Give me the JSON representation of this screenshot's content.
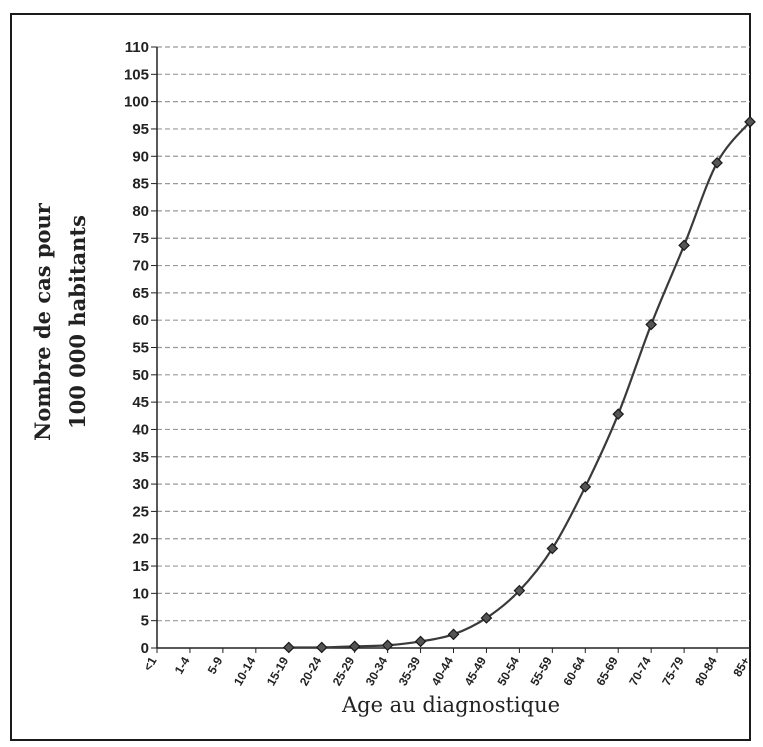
{
  "chart_data": {
    "type": "line",
    "title": "",
    "ylabel_lines": [
      "Nombre de cas pour",
      "100 000 habitants"
    ],
    "xlabel": "Age au diagnostique",
    "categories": [
      "<1",
      "1-4",
      "5-9",
      "10-14",
      "15-19",
      "20-24",
      "25-29",
      "30-34",
      "35-39",
      "40-44",
      "45-49",
      "50-54",
      "55-59",
      "60-64",
      "65-69",
      "70-74",
      "75-79",
      "80-84",
      "85+"
    ],
    "values": [
      null,
      null,
      null,
      null,
      0.1,
      0.1,
      0.3,
      0.5,
      1.2,
      2.5,
      5.5,
      10.5,
      18.2,
      29.5,
      42.8,
      59.2,
      73.7,
      88.8,
      96.3
    ],
    "ylim": [
      0,
      110
    ],
    "yticks": [
      0,
      5,
      10,
      15,
      20,
      25,
      30,
      35,
      40,
      45,
      50,
      55,
      60,
      65,
      70,
      75,
      80,
      85,
      90,
      95,
      100,
      105,
      110
    ],
    "grid": "horizontal-dashed",
    "marker": "diamond",
    "colors": {
      "line": "#3a3a3a",
      "marker": "#555555",
      "grid": "#9a9a9a",
      "axis": "#222222"
    }
  }
}
